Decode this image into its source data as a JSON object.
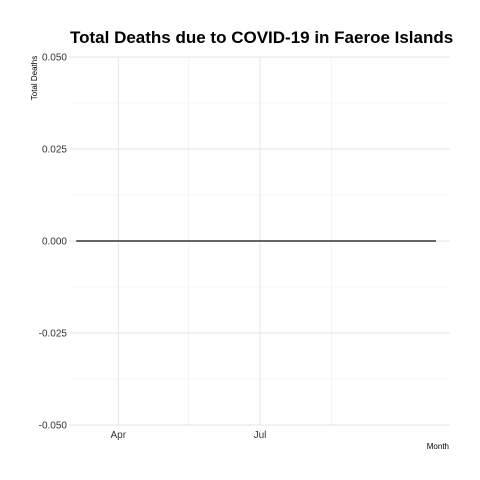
{
  "chart_data": {
    "type": "line",
    "title": "Total Deaths due to COVID-19 in Faeroe Islands",
    "xlabel": "Month",
    "ylabel": "Total Deaths",
    "ylim": [
      -0.05,
      0.05
    ],
    "xlim": [
      "2020-03-01",
      "2020-10-31"
    ],
    "y_ticks": [
      {
        "value": -0.05,
        "label": "-0.050"
      },
      {
        "value": -0.025,
        "label": "-0.025"
      },
      {
        "value": 0,
        "label": "0.000"
      },
      {
        "value": 0.025,
        "label": "0.025"
      },
      {
        "value": 0.05,
        "label": "0.050"
      }
    ],
    "x_ticks": [
      {
        "value": "2020-04-01",
        "label": "Apr"
      },
      {
        "value": "2020-07-01",
        "label": "Jul"
      }
    ],
    "x_minor_ticks": [
      "2020-05-16",
      "2020-08-16"
    ],
    "grid": true,
    "legend": "none",
    "series": [
      {
        "x": [
          "2020-03-05",
          "2020-10-22"
        ],
        "values": [
          0,
          0
        ],
        "color": "#333333"
      }
    ]
  }
}
